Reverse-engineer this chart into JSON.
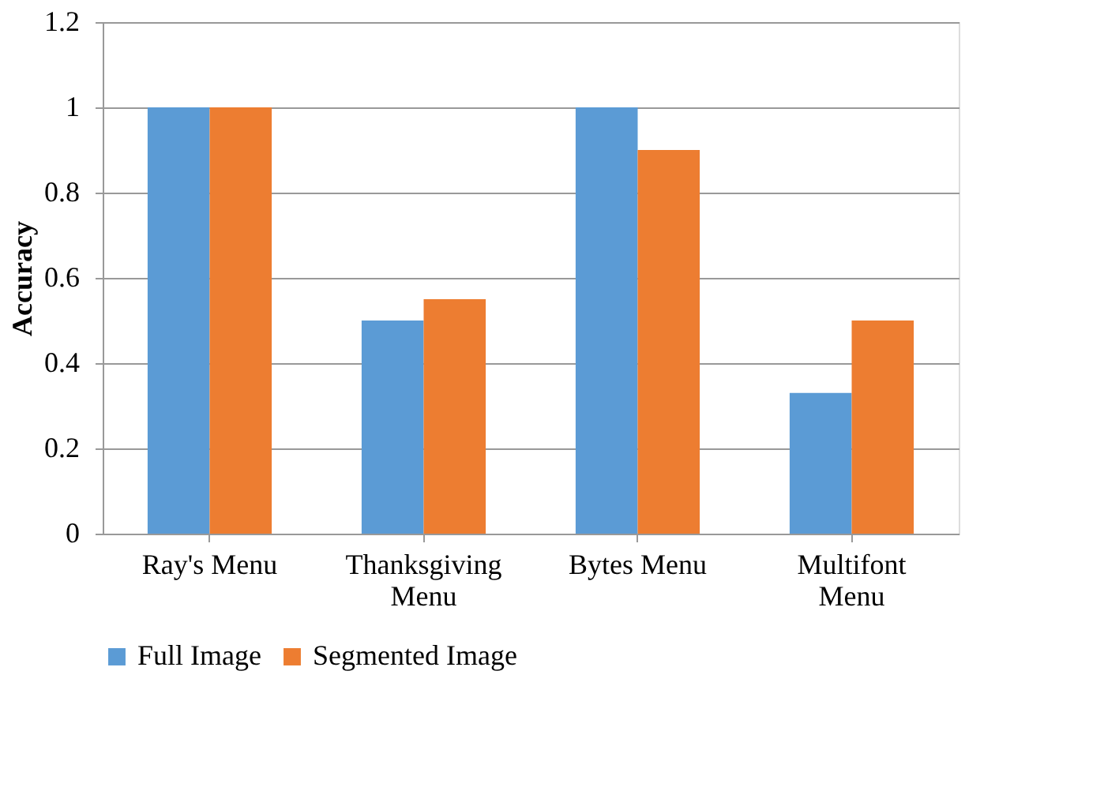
{
  "chart_data": {
    "type": "bar",
    "ylabel": "Accuracy",
    "categories": [
      "Ray's Menu",
      "Thanksgiving Menu",
      "Bytes Menu",
      "Multifont Menu"
    ],
    "series": [
      {
        "name": "Full Image",
        "color": "#5b9bd5",
        "values": [
          1,
          0.5,
          1,
          0.33
        ]
      },
      {
        "name": "Segmented Image",
        "color": "#ed7d31",
        "values": [
          1,
          0.55,
          0.9,
          0.5
        ]
      }
    ],
    "ylim": [
      0,
      1.2
    ],
    "yticks": [
      0,
      0.2,
      0.4,
      0.6,
      0.8,
      1,
      1.2
    ],
    "grid": "y",
    "legend": "bottom"
  }
}
